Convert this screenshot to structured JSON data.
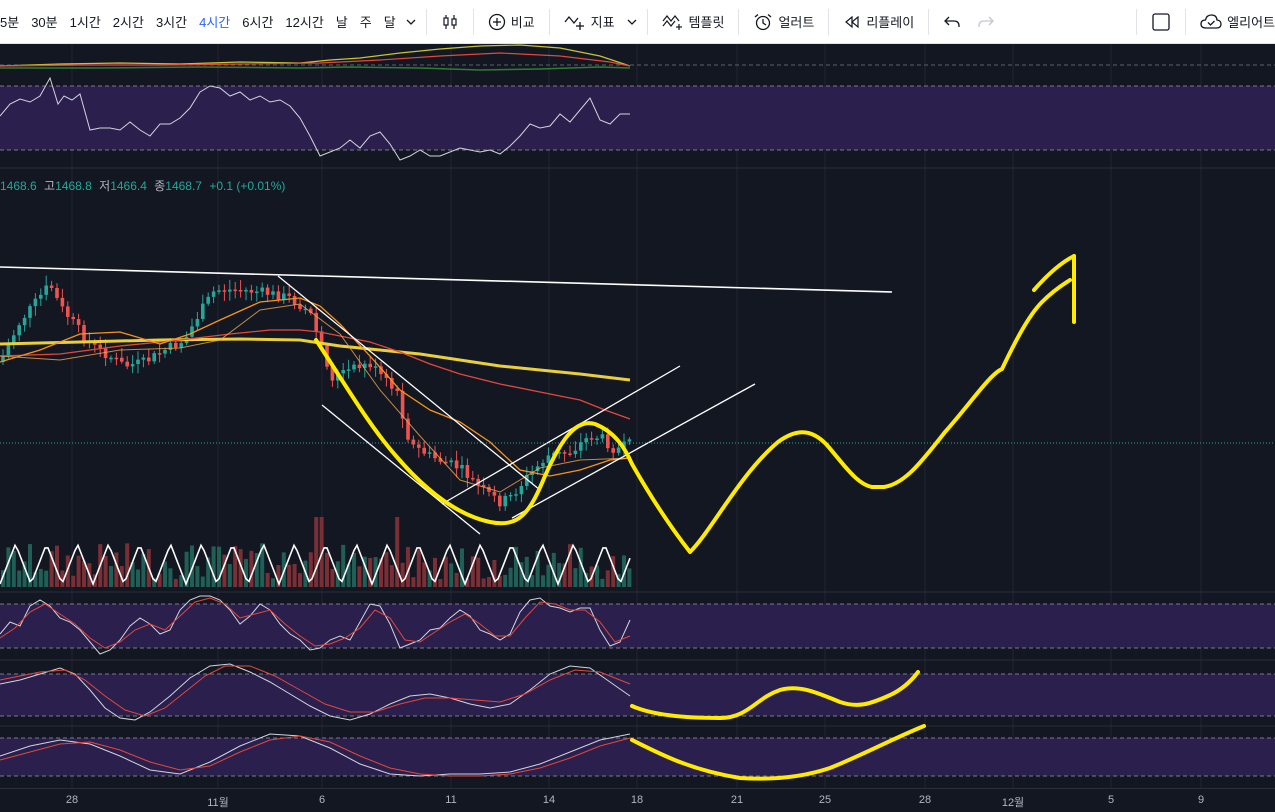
{
  "toolbar": {
    "timeframes": [
      "5분",
      "30분",
      "1시간",
      "2시간",
      "3시간",
      "4시간",
      "6시간",
      "12시간",
      "날",
      "주",
      "달"
    ],
    "active_timeframe": "4시간",
    "compare_label": "비교",
    "indicators_label": "지표",
    "templates_label": "템플릿",
    "alert_label": "얼러트",
    "replay_label": "리플레이",
    "alerts_right_label": "엘리어트"
  },
  "ohlc": {
    "open_value": "1468.6",
    "high_label": "고",
    "high_value": "1468.8",
    "low_label": "저",
    "low_value": "1466.4",
    "close_label": "종",
    "close_value": "1468.7",
    "change": "+0.1",
    "change_pct": "(+0.01%)"
  },
  "xaxis": {
    "labels": [
      "28",
      "11월",
      "6",
      "11",
      "14",
      "18",
      "21",
      "25",
      "28",
      "12월",
      "5",
      "9"
    ]
  },
  "colors": {
    "background": "#131722",
    "up": "#26a69a",
    "down": "#ef5350",
    "drawing": "#ffeb00",
    "ma_slow": "#e9d03b",
    "ma_mid": "#e5473b",
    "ma_fast": "#f7931a",
    "osc_band": "#2a1f4d"
  }
}
